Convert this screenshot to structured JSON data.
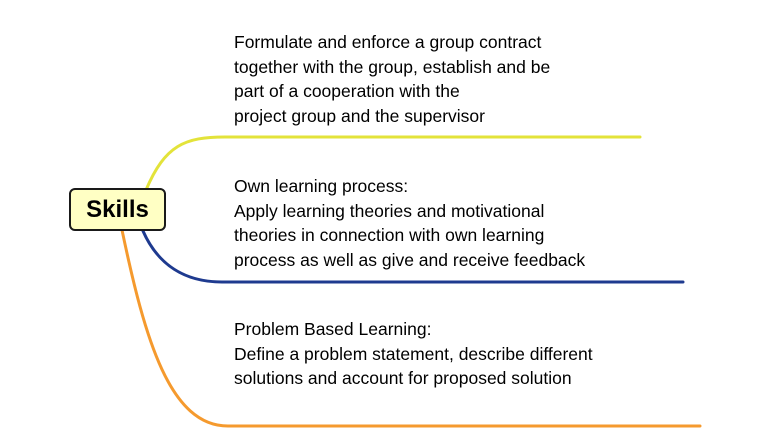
{
  "central_topic": {
    "label": "Skills",
    "fill_color": "#ffffc4",
    "border_color": "#1a1a1a"
  },
  "branches": [
    {
      "color": "#e3e33a",
      "lines": [
        "Formulate and enforce a group contract",
        "together with the group, establish and be",
        "part of a cooperation with the",
        "project group and the supervisor"
      ]
    },
    {
      "color": "#1e3a8f",
      "lines": [
        "Own learning process:",
        "Apply learning theories and motivational",
        "theories in connection with own learning",
        "process as well as give and receive feedback"
      ]
    },
    {
      "color": "#f59a2e",
      "lines": [
        "Problem Based Learning:",
        "Define a problem statement, describe different",
        "solutions and account for proposed solution"
      ]
    }
  ]
}
